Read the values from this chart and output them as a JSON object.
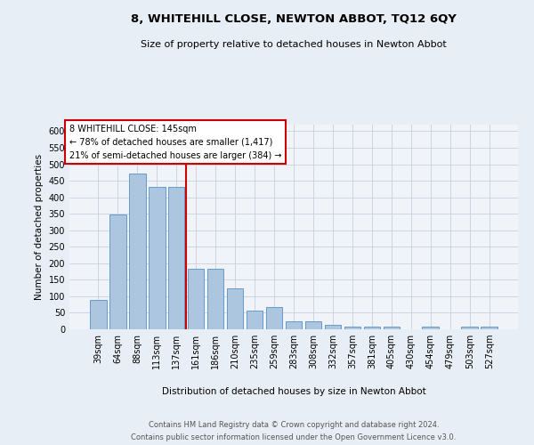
{
  "title1": "8, WHITEHILL CLOSE, NEWTON ABBOT, TQ12 6QY",
  "title2": "Size of property relative to detached houses in Newton Abbot",
  "xlabel": "Distribution of detached houses by size in Newton Abbot",
  "ylabel": "Number of detached properties",
  "categories": [
    "39sqm",
    "64sqm",
    "88sqm",
    "113sqm",
    "137sqm",
    "161sqm",
    "186sqm",
    "210sqm",
    "235sqm",
    "259sqm",
    "283sqm",
    "308sqm",
    "332sqm",
    "357sqm",
    "381sqm",
    "405sqm",
    "430sqm",
    "454sqm",
    "479sqm",
    "503sqm",
    "527sqm"
  ],
  "values": [
    90,
    348,
    472,
    431,
    431,
    183,
    183,
    124,
    57,
    68,
    25,
    25,
    13,
    8,
    8,
    8,
    0,
    8,
    0,
    8,
    8
  ],
  "bar_color": "#adc6e0",
  "bar_edge_color": "#6699cc",
  "vline_color": "#cc0000",
  "annotation_box_color": "#ffffff",
  "annotation_box_edge_color": "#cc0000",
  "ylim": [
    0,
    620
  ],
  "yticks": [
    0,
    50,
    100,
    150,
    200,
    250,
    300,
    350,
    400,
    450,
    500,
    550,
    600
  ],
  "footer1": "Contains HM Land Registry data © Crown copyright and database right 2024.",
  "footer2": "Contains public sector information licensed under the Open Government Licence v3.0.",
  "bg_color": "#e8eef5",
  "plot_bg_color": "#f0f4f8",
  "grid_color": "#c5d0dc",
  "title1_fontsize": 9.5,
  "title2_fontsize": 8.0,
  "ylabel_fontsize": 7.5,
  "xlabel_fontsize": 7.5,
  "tick_fontsize": 7.0,
  "annot_fontsize": 7.0
}
